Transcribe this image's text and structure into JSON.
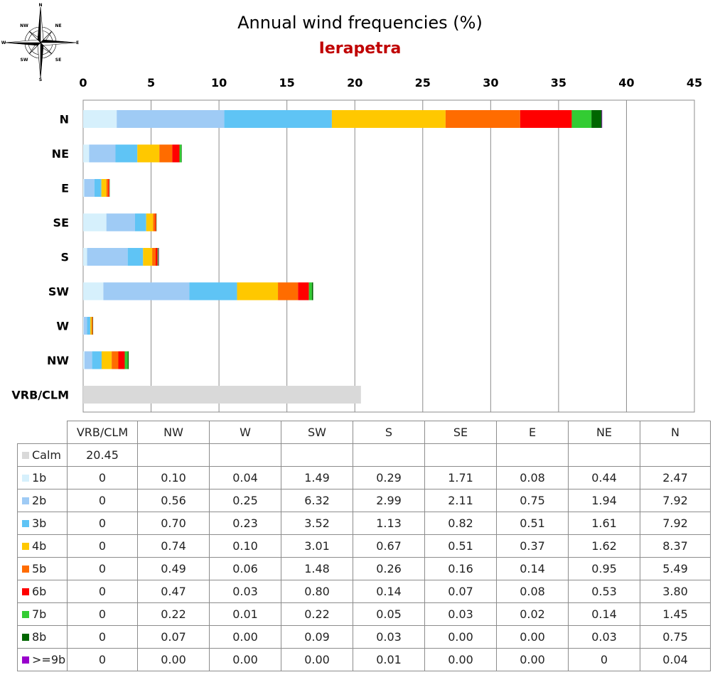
{
  "chart_data": {
    "type": "bar",
    "orientation": "horizontal",
    "stacked": true,
    "title": "Annual wind frequencies (%)",
    "subtitle": "Ierapetra",
    "xlim": [
      0,
      45
    ],
    "x_ticks": [
      "0",
      "5",
      "10",
      "15",
      "20",
      "25",
      "30",
      "35",
      "40",
      "45"
    ],
    "x_tick_values": [
      0,
      5,
      10,
      15,
      20,
      25,
      30,
      35,
      40,
      45
    ],
    "categories": [
      "N",
      "NE",
      "E",
      "SE",
      "S",
      "SW",
      "W",
      "NW",
      "VRB/CLM"
    ],
    "series": [
      {
        "name": "Calm",
        "color": "#d9d9d9",
        "values": [
          0,
          0,
          0,
          0,
          0,
          0,
          0,
          0,
          20.45
        ]
      },
      {
        "name": "1b",
        "color": "#d6f0fc",
        "values": [
          2.47,
          0.44,
          0.08,
          1.71,
          0.29,
          1.49,
          0.04,
          0.1,
          0
        ]
      },
      {
        "name": "2b",
        "color": "#9fcbf5",
        "values": [
          7.92,
          1.94,
          0.75,
          2.11,
          2.99,
          6.32,
          0.25,
          0.56,
          0
        ]
      },
      {
        "name": "3b",
        "color": "#5fc4f5",
        "values": [
          7.92,
          1.61,
          0.51,
          0.82,
          1.13,
          3.52,
          0.23,
          0.7,
          0
        ]
      },
      {
        "name": "4b",
        "color": "#ffc800",
        "values": [
          8.37,
          1.62,
          0.37,
          0.51,
          0.67,
          3.01,
          0.1,
          0.74,
          0
        ]
      },
      {
        "name": "5b",
        "color": "#ff6c00",
        "values": [
          5.49,
          0.95,
          0.14,
          0.16,
          0.26,
          1.48,
          0.06,
          0.49,
          0
        ]
      },
      {
        "name": "6b",
        "color": "#ff0000",
        "values": [
          3.8,
          0.53,
          0.08,
          0.07,
          0.14,
          0.8,
          0.03,
          0.47,
          0
        ]
      },
      {
        "name": "7b",
        "color": "#33cc33",
        "values": [
          1.45,
          0.14,
          0.02,
          0.03,
          0.05,
          0.22,
          0.01,
          0.22,
          0
        ]
      },
      {
        "name": "8b",
        "color": "#006600",
        "values": [
          0.75,
          0.03,
          0.0,
          0.0,
          0.03,
          0.09,
          0.0,
          0.07,
          0
        ]
      },
      {
        "name": ">=9b",
        "color": "#9900cc",
        "values": [
          0.04,
          0,
          0.0,
          0.0,
          0.01,
          0.0,
          0.0,
          0.0,
          0
        ]
      }
    ]
  },
  "compass": {
    "labels": [
      "N",
      "NE",
      "E",
      "SE",
      "S",
      "SW",
      "W",
      "NW"
    ]
  },
  "table": {
    "columns": [
      "VRB/CLM",
      "NW",
      "W",
      "SW",
      "S",
      "SE",
      "E",
      "NE",
      "N"
    ],
    "rows": [
      {
        "label": "Calm",
        "color": "#d9d9d9",
        "cells": [
          "20.45",
          "",
          "",
          "",
          "",
          "",
          "",
          "",
          ""
        ]
      },
      {
        "label": "1b",
        "color": "#d6f0fc",
        "cells": [
          "0",
          "0.10",
          "0.04",
          "1.49",
          "0.29",
          "1.71",
          "0.08",
          "0.44",
          "2.47"
        ]
      },
      {
        "label": "2b",
        "color": "#9fcbf5",
        "cells": [
          "0",
          "0.56",
          "0.25",
          "6.32",
          "2.99",
          "2.11",
          "0.75",
          "1.94",
          "7.92"
        ]
      },
      {
        "label": "3b",
        "color": "#5fc4f5",
        "cells": [
          "0",
          "0.70",
          "0.23",
          "3.52",
          "1.13",
          "0.82",
          "0.51",
          "1.61",
          "7.92"
        ]
      },
      {
        "label": "4b",
        "color": "#ffc800",
        "cells": [
          "0",
          "0.74",
          "0.10",
          "3.01",
          "0.67",
          "0.51",
          "0.37",
          "1.62",
          "8.37"
        ]
      },
      {
        "label": "5b",
        "color": "#ff6c00",
        "cells": [
          "0",
          "0.49",
          "0.06",
          "1.48",
          "0.26",
          "0.16",
          "0.14",
          "0.95",
          "5.49"
        ]
      },
      {
        "label": "6b",
        "color": "#ff0000",
        "cells": [
          "0",
          "0.47",
          "0.03",
          "0.80",
          "0.14",
          "0.07",
          "0.08",
          "0.53",
          "3.80"
        ]
      },
      {
        "label": "7b",
        "color": "#33cc33",
        "cells": [
          "0",
          "0.22",
          "0.01",
          "0.22",
          "0.05",
          "0.03",
          "0.02",
          "0.14",
          "1.45"
        ]
      },
      {
        "label": "8b",
        "color": "#006600",
        "cells": [
          "0",
          "0.07",
          "0.00",
          "0.09",
          "0.03",
          "0.00",
          "0.00",
          "0.03",
          "0.75"
        ]
      },
      {
        "label": ">=9b",
        "color": "#9900cc",
        "cells": [
          "0",
          "0.00",
          "0.00",
          "0.00",
          "0.01",
          "0.00",
          "0.00",
          "0",
          "0.04"
        ]
      }
    ]
  }
}
